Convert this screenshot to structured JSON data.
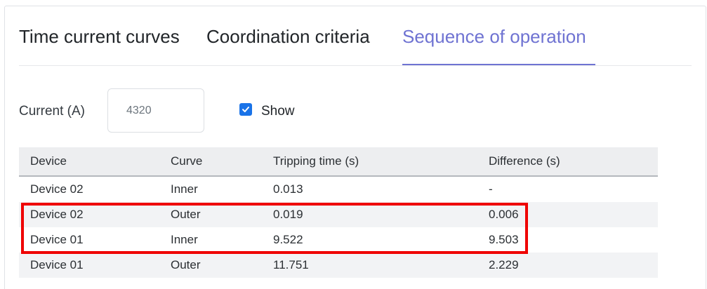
{
  "tabs": [
    {
      "label": "Time current curves",
      "active": false
    },
    {
      "label": "Coordination criteria",
      "active": false
    },
    {
      "label": "Sequence of operation",
      "active": true
    }
  ],
  "current": {
    "label": "Current (A)",
    "value": "4320"
  },
  "show": {
    "label": "Show",
    "checked": true
  },
  "table": {
    "headers": [
      "Device",
      "Curve",
      "Tripping time (s)",
      "Difference (s)"
    ],
    "rows": [
      [
        "Device 02",
        "Inner",
        "0.013",
        "-"
      ],
      [
        "Device 02",
        "Outer",
        "0.019",
        "0.006"
      ],
      [
        "Device 01",
        "Inner",
        "9.522",
        "9.503"
      ],
      [
        "Device 01",
        "Outer",
        "11.751",
        "2.229"
      ]
    ]
  },
  "colors": {
    "active_tab": "#6f73d2",
    "checkbox": "#1a73e8",
    "highlight": "#ef0000"
  }
}
